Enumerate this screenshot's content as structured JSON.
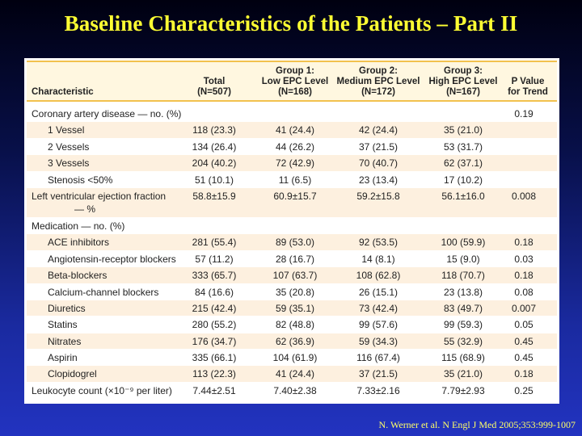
{
  "title": "Baseline Characteristics of the Patients – Part II",
  "header": {
    "characteristic": "Characteristic",
    "total": [
      "Total",
      "(N=507)"
    ],
    "group1": [
      "Group 1:",
      "Low EPC Level",
      "(N=168)"
    ],
    "group2": [
      "Group 2:",
      "Medium EPC Level",
      "(N=172)"
    ],
    "group3": [
      "Group 3:",
      "High EPC Level",
      "(N=167)"
    ],
    "pvalue": [
      "P Value",
      "for Trend"
    ]
  },
  "rows": [
    {
      "label": "Coronary artery disease — no. (%)",
      "total": "",
      "g1": "",
      "g2": "",
      "g3": "",
      "p": "0.19"
    },
    {
      "label": "1 Vessel",
      "total": "118 (23.3)",
      "g1": "41 (24.4)",
      "g2": "42 (24.4)",
      "g3": "35 (21.0)",
      "p": ""
    },
    {
      "label": "2 Vessels",
      "total": "134 (26.4)",
      "g1": "44 (26.2)",
      "g2": "37 (21.5)",
      "g3": "53 (31.7)",
      "p": ""
    },
    {
      "label": "3 Vessels",
      "total": "204 (40.2)",
      "g1": "72 (42.9)",
      "g2": "70 (40.7)",
      "g3": "62 (37.1)",
      "p": ""
    },
    {
      "label": "Stenosis <50%",
      "total": "51 (10.1)",
      "g1": "11 (6.5)",
      "g2": "23 (13.4)",
      "g3": "17 (10.2)",
      "p": ""
    },
    {
      "label": "Left ventricular ejection fraction",
      "label2": "— %",
      "total": "58.8±15.9",
      "g1": "60.9±15.7",
      "g2": "59.2±15.8",
      "g3": "56.1±16.0",
      "p": "0.008"
    },
    {
      "label": "Medication — no. (%)",
      "total": "",
      "g1": "",
      "g2": "",
      "g3": "",
      "p": ""
    },
    {
      "label": "ACE inhibitors",
      "total": "281 (55.4)",
      "g1": "89 (53.0)",
      "g2": "92 (53.5)",
      "g3": "100 (59.9)",
      "p": "0.18"
    },
    {
      "label": "Angiotensin-receptor blockers",
      "total": "57 (11.2)",
      "g1": "28 (16.7)",
      "g2": "14 (8.1)",
      "g3": "15 (9.0)",
      "p": "0.03"
    },
    {
      "label": "Beta-blockers",
      "total": "333 (65.7)",
      "g1": "107 (63.7)",
      "g2": "108 (62.8)",
      "g3": "118 (70.7)",
      "p": "0.18"
    },
    {
      "label": "Calcium-channel blockers",
      "total": "84 (16.6)",
      "g1": "35 (20.8)",
      "g2": "26 (15.1)",
      "g3": "23 (13.8)",
      "p": "0.08"
    },
    {
      "label": "Diuretics",
      "total": "215 (42.4)",
      "g1": "59 (35.1)",
      "g2": "73 (42.4)",
      "g3": "83 (49.7)",
      "p": "0.007"
    },
    {
      "label": "Statins",
      "total": "280 (55.2)",
      "g1": "82 (48.8)",
      "g2": "99 (57.6)",
      "g3": "99 (59.3)",
      "p": "0.05"
    },
    {
      "label": "Nitrates",
      "total": "176 (34.7)",
      "g1": "62 (36.9)",
      "g2": "59 (34.3)",
      "g3": "55 (32.9)",
      "p": "0.45"
    },
    {
      "label": "Aspirin",
      "total": "335 (66.1)",
      "g1": "104 (61.9)",
      "g2": "116 (67.4)",
      "g3": "115 (68.9)",
      "p": "0.45"
    },
    {
      "label": "Clopidogrel",
      "total": "113 (22.3)",
      "g1": "41 (24.4)",
      "g2": "37 (21.5)",
      "g3": "35 (21.0)",
      "p": "0.18"
    },
    {
      "label": "Leukocyte count (×10⁻⁹ per liter)",
      "total": "7.44±2.51",
      "g1": "7.40±2.38",
      "g2": "7.33±2.16",
      "g3": "7.79±2.93",
      "p": "0.25"
    }
  ],
  "citation": "N. Werner et al. N Engl J Med 2005;353:999-1007",
  "colors": {
    "title": "#ffff33",
    "header_bg": "#fff7e0",
    "header_rule": "#f2c14e",
    "stripe": "#fdf0df",
    "citation": "#ffff66"
  }
}
